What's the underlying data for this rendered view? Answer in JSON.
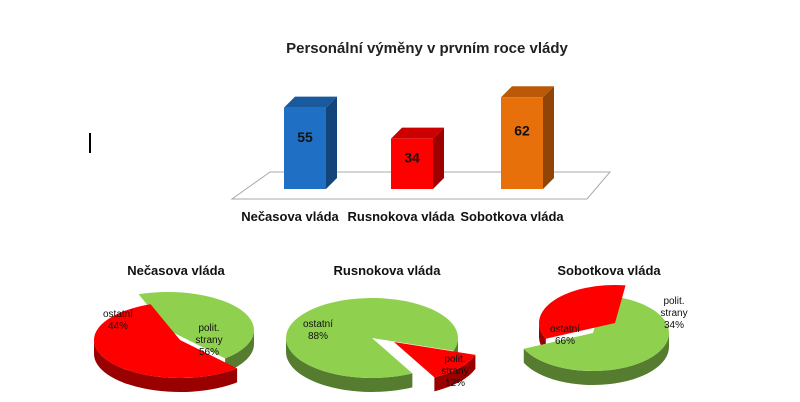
{
  "chart_data": [
    {
      "type": "bar",
      "title": "Personální výměny v prvním roce vlády",
      "categories": [
        "Nečasova vláda",
        "Rusnokova vláda",
        "Sobotkova vláda"
      ],
      "values": [
        55,
        34,
        62
      ],
      "colors": [
        "#1f6fc4",
        "#ff0000",
        "#e8700a"
      ],
      "value_labels": [
        "55",
        "34",
        "62"
      ],
      "style": "3d"
    },
    {
      "type": "pie",
      "title": "Nečasova vláda",
      "slices": [
        {
          "label": "ostatní",
          "value": 44,
          "pct": "44%",
          "color": "#8fd14f"
        },
        {
          "label": "polit. strany",
          "value": 56,
          "pct": "56%",
          "color": "#ff0000"
        }
      ]
    },
    {
      "type": "pie",
      "title": "Rusnokova vláda",
      "slices": [
        {
          "label": "ostatní",
          "value": 88,
          "pct": "88%",
          "color": "#8fd14f"
        },
        {
          "label": "polit. strany",
          "value": 12,
          "pct": "12%",
          "color": "#ff0000"
        }
      ]
    },
    {
      "type": "pie",
      "title": "Sobotkova vláda",
      "slices": [
        {
          "label": "ostatní",
          "value": 66,
          "pct": "66%",
          "color": "#8fd14f"
        },
        {
          "label": "polit. strany",
          "value": 34,
          "pct": "34%",
          "color": "#ff0000"
        }
      ]
    }
  ]
}
